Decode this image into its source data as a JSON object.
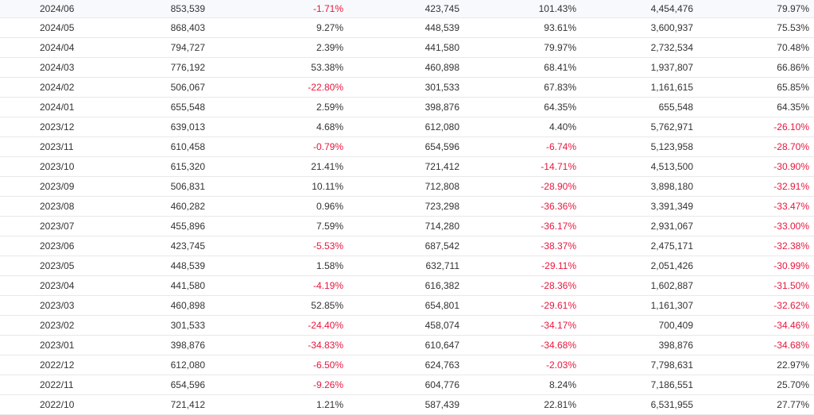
{
  "table": {
    "rows": [
      {
        "month": "2024/06",
        "c1": "853,539",
        "c2": "-1.71%",
        "c3": "423,745",
        "c4": "101.43%",
        "c5": "4,454,476",
        "c6": "79.97%"
      },
      {
        "month": "2024/05",
        "c1": "868,403",
        "c2": "9.27%",
        "c3": "448,539",
        "c4": "93.61%",
        "c5": "3,600,937",
        "c6": "75.53%"
      },
      {
        "month": "2024/04",
        "c1": "794,727",
        "c2": "2.39%",
        "c3": "441,580",
        "c4": "79.97%",
        "c5": "2,732,534",
        "c6": "70.48%"
      },
      {
        "month": "2024/03",
        "c1": "776,192",
        "c2": "53.38%",
        "c3": "460,898",
        "c4": "68.41%",
        "c5": "1,937,807",
        "c6": "66.86%"
      },
      {
        "month": "2024/02",
        "c1": "506,067",
        "c2": "-22.80%",
        "c3": "301,533",
        "c4": "67.83%",
        "c5": "1,161,615",
        "c6": "65.85%"
      },
      {
        "month": "2024/01",
        "c1": "655,548",
        "c2": "2.59%",
        "c3": "398,876",
        "c4": "64.35%",
        "c5": "655,548",
        "c6": "64.35%"
      },
      {
        "month": "2023/12",
        "c1": "639,013",
        "c2": "4.68%",
        "c3": "612,080",
        "c4": "4.40%",
        "c5": "5,762,971",
        "c6": "-26.10%"
      },
      {
        "month": "2023/11",
        "c1": "610,458",
        "c2": "-0.79%",
        "c3": "654,596",
        "c4": "-6.74%",
        "c5": "5,123,958",
        "c6": "-28.70%"
      },
      {
        "month": "2023/10",
        "c1": "615,320",
        "c2": "21.41%",
        "c3": "721,412",
        "c4": "-14.71%",
        "c5": "4,513,500",
        "c6": "-30.90%"
      },
      {
        "month": "2023/09",
        "c1": "506,831",
        "c2": "10.11%",
        "c3": "712,808",
        "c4": "-28.90%",
        "c5": "3,898,180",
        "c6": "-32.91%"
      },
      {
        "month": "2023/08",
        "c1": "460,282",
        "c2": "0.96%",
        "c3": "723,298",
        "c4": "-36.36%",
        "c5": "3,391,349",
        "c6": "-33.47%"
      },
      {
        "month": "2023/07",
        "c1": "455,896",
        "c2": "7.59%",
        "c3": "714,280",
        "c4": "-36.17%",
        "c5": "2,931,067",
        "c6": "-33.00%"
      },
      {
        "month": "2023/06",
        "c1": "423,745",
        "c2": "-5.53%",
        "c3": "687,542",
        "c4": "-38.37%",
        "c5": "2,475,171",
        "c6": "-32.38%"
      },
      {
        "month": "2023/05",
        "c1": "448,539",
        "c2": "1.58%",
        "c3": "632,711",
        "c4": "-29.11%",
        "c5": "2,051,426",
        "c6": "-30.99%"
      },
      {
        "month": "2023/04",
        "c1": "441,580",
        "c2": "-4.19%",
        "c3": "616,382",
        "c4": "-28.36%",
        "c5": "1,602,887",
        "c6": "-31.50%"
      },
      {
        "month": "2023/03",
        "c1": "460,898",
        "c2": "52.85%",
        "c3": "654,801",
        "c4": "-29.61%",
        "c5": "1,161,307",
        "c6": "-32.62%"
      },
      {
        "month": "2023/02",
        "c1": "301,533",
        "c2": "-24.40%",
        "c3": "458,074",
        "c4": "-34.17%",
        "c5": "700,409",
        "c6": "-34.46%"
      },
      {
        "month": "2023/01",
        "c1": "398,876",
        "c2": "-34.83%",
        "c3": "610,647",
        "c4": "-34.68%",
        "c5": "398,876",
        "c6": "-34.68%"
      },
      {
        "month": "2022/12",
        "c1": "612,080",
        "c2": "-6.50%",
        "c3": "624,763",
        "c4": "-2.03%",
        "c5": "7,798,631",
        "c6": "22.97%"
      },
      {
        "month": "2022/11",
        "c1": "654,596",
        "c2": "-9.26%",
        "c3": "604,776",
        "c4": "8.24%",
        "c5": "7,186,551",
        "c6": "25.70%"
      },
      {
        "month": "2022/10",
        "c1": "721,412",
        "c2": "1.21%",
        "c3": "587,439",
        "c4": "22.81%",
        "c5": "6,531,955",
        "c6": "27.77%"
      }
    ]
  },
  "colors": {
    "negative": "#e8173e",
    "text": "#333333",
    "divider": "#e8e8e8"
  }
}
